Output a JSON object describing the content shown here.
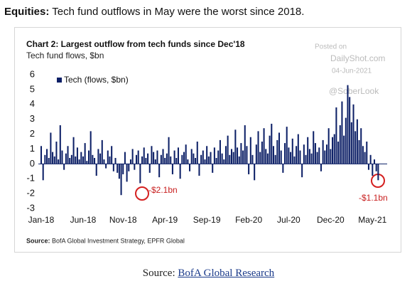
{
  "header": {
    "label": "Equities:",
    "text": "Tech fund outflows in May were the worst since 2018."
  },
  "watermark": {
    "line1": "Posted on",
    "line2": "DailyShot.com",
    "line3": "04-Jun-2021",
    "line4": "@SoberLook"
  },
  "caption": {
    "label": "Source:",
    "link": "BofA Global Research"
  },
  "chart_data": {
    "type": "bar",
    "title": "Chart 2: Largest outflow from tech funds since Dec'18",
    "subtitle": "Tech fund flows, $bn",
    "source_label": "Source:",
    "source_text": "BofA Global Investment Strategy, EPFR Global",
    "annotations": [
      "-$2.1bn",
      "-$1.1bn"
    ],
    "legend": "top-left",
    "grid": false,
    "ylim": [
      -3,
      6
    ],
    "yticks": [
      -3,
      -2,
      -1,
      0,
      1,
      2,
      3,
      4,
      5,
      6
    ],
    "categories": [
      "Jan-18",
      null,
      null,
      null,
      null,
      null,
      null,
      null,
      null,
      null,
      null,
      null,
      null,
      null,
      null,
      null,
      null,
      null,
      null,
      null,
      null,
      null,
      "Jun-18",
      null,
      null,
      null,
      null,
      null,
      null,
      null,
      null,
      null,
      null,
      null,
      null,
      null,
      null,
      null,
      null,
      null,
      null,
      null,
      null,
      "Nov-18",
      null,
      null,
      null,
      null,
      null,
      null,
      null,
      null,
      null,
      null,
      null,
      null,
      null,
      null,
      null,
      null,
      null,
      null,
      null,
      null,
      null,
      "Apr-19",
      null,
      null,
      null,
      null,
      null,
      null,
      null,
      null,
      null,
      null,
      null,
      null,
      null,
      null,
      null,
      null,
      null,
      null,
      null,
      null,
      null,
      "Sep-19",
      null,
      null,
      null,
      null,
      null,
      null,
      null,
      null,
      null,
      null,
      null,
      null,
      null,
      null,
      null,
      null,
      null,
      null,
      null,
      null,
      null,
      "Feb-20",
      null,
      null,
      null,
      null,
      null,
      null,
      null,
      null,
      null,
      null,
      null,
      null,
      null,
      null,
      null,
      null,
      null,
      null,
      null,
      null,
      "Jul-20",
      null,
      null,
      null,
      null,
      null,
      null,
      null,
      null,
      null,
      null,
      null,
      null,
      null,
      null,
      null,
      null,
      null,
      null,
      null,
      null,
      null,
      "Dec-20",
      null,
      null,
      null,
      null,
      null,
      null,
      null,
      null,
      null,
      null,
      null,
      null,
      null,
      null,
      null,
      null,
      null,
      null,
      null,
      null,
      null,
      "May-21",
      null,
      null,
      null
    ],
    "series": [
      {
        "name": "Tech (flows, $bn)",
        "color": "#0c1f66",
        "values": [
          1.2,
          -1.1,
          0.6,
          1.0,
          0.4,
          2.1,
          0.8,
          0.5,
          1.5,
          0.3,
          2.6,
          0.9,
          -0.4,
          0.7,
          1.2,
          0.4,
          0.6,
          1.8,
          0.5,
          1.1,
          0.3,
          0.8,
          0.5,
          1.4,
          0.2,
          0.9,
          2.2,
          0.6,
          0.4,
          -0.8,
          1.0,
          0.7,
          1.6,
          0.3,
          -0.3,
          0.9,
          0.5,
          1.2,
          -0.5,
          0.4,
          -0.6,
          -1.0,
          -2.1,
          -0.7,
          0.8,
          -1.2,
          -0.5,
          0.3,
          1.0,
          -0.4,
          0.6,
          0.9,
          -1.3,
          0.5,
          1.1,
          0.4,
          0.7,
          -0.6,
          1.2,
          0.8,
          0.3,
          0.9,
          -0.9,
          0.6,
          1.0,
          0.4,
          0.7,
          1.8,
          0.5,
          -0.7,
          0.9,
          0.4,
          1.1,
          -1.0,
          0.6,
          0.8,
          1.3,
          0.3,
          -0.5,
          1.0,
          0.7,
          0.4,
          1.5,
          -0.8,
          0.6,
          0.9,
          0.3,
          1.2,
          0.5,
          0.8,
          -0.6,
          1.1,
          0.4,
          0.9,
          1.6,
          0.7,
          0.3,
          1.2,
          1.9,
          0.6,
          1.0,
          0.8,
          2.3,
          1.1,
          0.5,
          1.4,
          0.9,
          2.6,
          1.2,
          -0.7,
          1.8,
          0.6,
          -1.1,
          1.3,
          2.2,
          0.8,
          1.5,
          2.4,
          1.0,
          0.7,
          1.9,
          2.7,
          1.2,
          0.6,
          1.6,
          2.1,
          0.9,
          -0.6,
          1.4,
          2.5,
          1.1,
          0.8,
          1.7,
          0.5,
          1.2,
          2.0,
          0.9,
          -0.9,
          1.3,
          0.6,
          1.8,
          1.0,
          0.7,
          2.2,
          1.4,
          0.8,
          1.1,
          -0.5,
          1.6,
          0.9,
          1.3,
          2.4,
          1.0,
          1.8,
          2.0,
          3.8,
          1.5,
          2.6,
          4.2,
          1.9,
          3.1,
          5.3,
          4.5,
          2.8,
          4.0,
          2.2,
          3.0,
          1.6,
          2.4,
          1.2,
          0.8,
          1.5,
          -0.4,
          0.6,
          -0.8,
          0.3,
          -0.5,
          -1.1
        ]
      }
    ]
  }
}
